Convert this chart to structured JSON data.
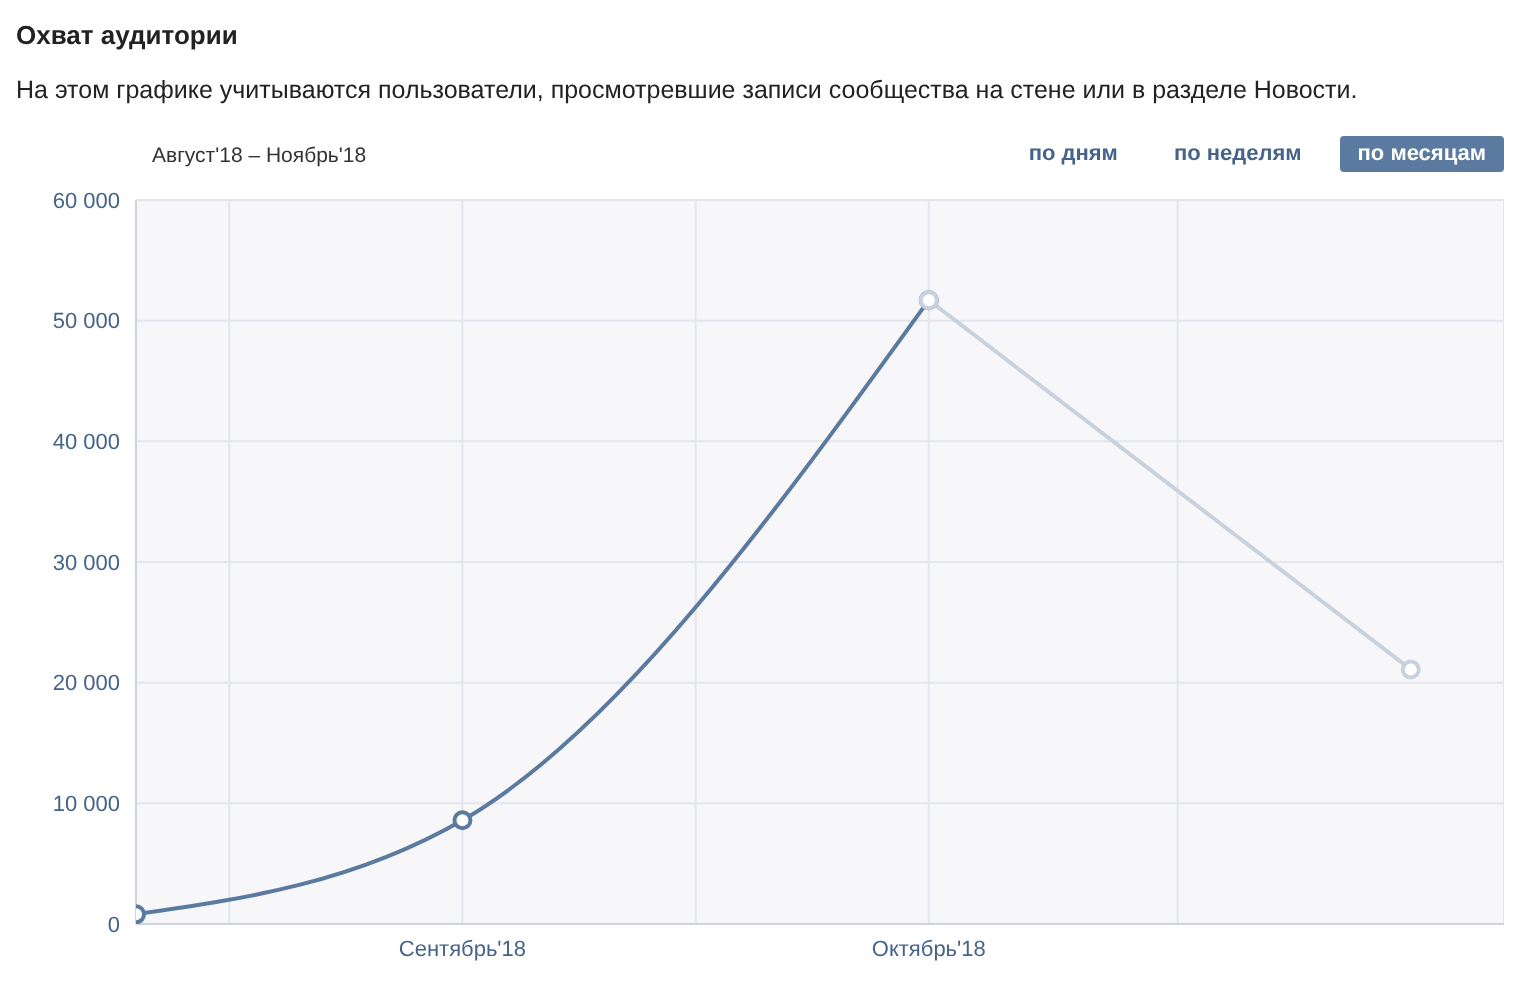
{
  "chart_data": {
    "type": "line",
    "title": "Охват аудитории",
    "subtitle": "На этом графике учитываются пользователи, просмотревшие записи сообщества на стене или в разделе Новости.",
    "annotations": [
      "Август'18 – Ноябрь'18",
      "по дням",
      "по неделям",
      "по месяцам"
    ],
    "series": [
      {
        "color": "#5b7a9f",
        "x": [
          "2018-08-11",
          "2018-09-01",
          "2018-10-01"
        ],
        "values": [
          800,
          8600,
          51700
        ]
      },
      {
        "color": "#c8d2df",
        "x": [
          "2018-10-01",
          "2018-11-01"
        ],
        "values": [
          51700,
          21100
        ]
      }
    ],
    "xlim": [
      "2018-08-11",
      "2018-11-07"
    ],
    "xticks": [
      {
        "value": "2018-08-17",
        "label": null
      },
      {
        "value": "2018-09-01",
        "label": "Сентябрь'18"
      },
      {
        "value": "2018-09-16",
        "label": null
      },
      {
        "value": "2018-10-01",
        "label": "Октябрь'18"
      },
      {
        "value": "2018-10-17",
        "label": null
      }
    ],
    "ylim": [
      0,
      60000
    ],
    "yticks": [
      0,
      {
        "value": 10000,
        "label": "10 000"
      },
      {
        "value": 20000,
        "label": "20 000"
      },
      {
        "value": 30000,
        "label": "30 000"
      },
      {
        "value": 40000,
        "label": "40 000"
      },
      {
        "value": 50000,
        "label": "50 000"
      },
      {
        "value": 60000,
        "label": "60 000"
      }
    ],
    "grid": true,
    "marker": "circle",
    "line_style": "solid"
  }
}
